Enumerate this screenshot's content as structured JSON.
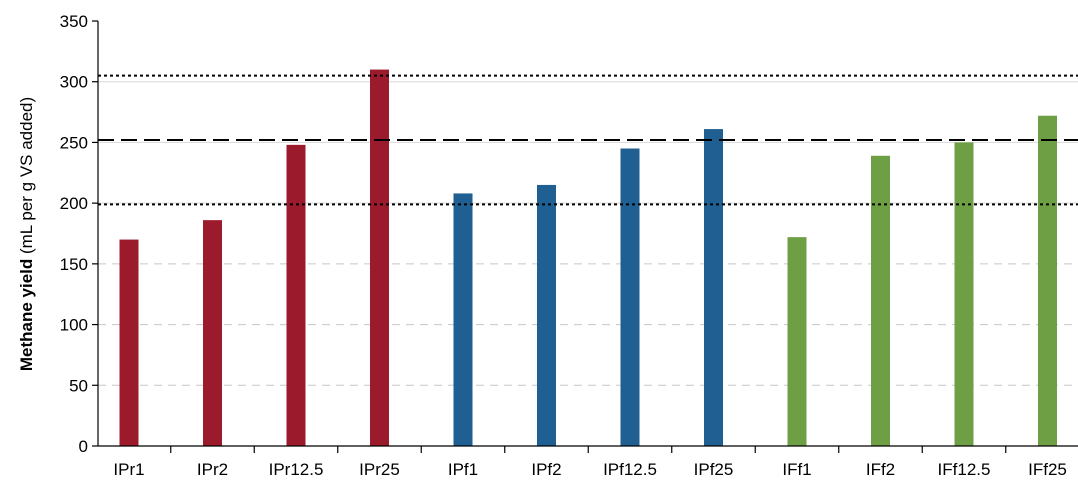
{
  "chart_data": {
    "type": "bar",
    "title": "",
    "xlabel": "",
    "ylabel_bold": "Methane yield",
    "ylabel_rest": " (mL per g VS added)",
    "ylim": [
      0,
      350
    ],
    "yticks": [
      0,
      50,
      100,
      150,
      200,
      250,
      300,
      350
    ],
    "grid": "horizontal dashed at 50, 100, 150",
    "categories": [
      "IPr1",
      "IPr2",
      "IPr12.5",
      "IPr25",
      "IPf1",
      "IPf2",
      "IPf12.5",
      "IPf25",
      "IFf1",
      "IFf2",
      "IFf12.5",
      "IFf25"
    ],
    "values": [
      170,
      186,
      248,
      310,
      208,
      215,
      245,
      261,
      172,
      239,
      250,
      272
    ],
    "bar_colors": [
      "#9b1b2d",
      "#9b1b2d",
      "#9b1b2d",
      "#9b1b2d",
      "#1f5f91",
      "#1f5f91",
      "#1f5f91",
      "#1f5f91",
      "#6f9f45",
      "#6f9f45",
      "#6f9f45",
      "#6f9f45"
    ],
    "reference_lines": [
      {
        "y": 305,
        "style": "dotted"
      },
      {
        "y": 252,
        "style": "dashed"
      },
      {
        "y": 199,
        "style": "dotted"
      }
    ]
  }
}
